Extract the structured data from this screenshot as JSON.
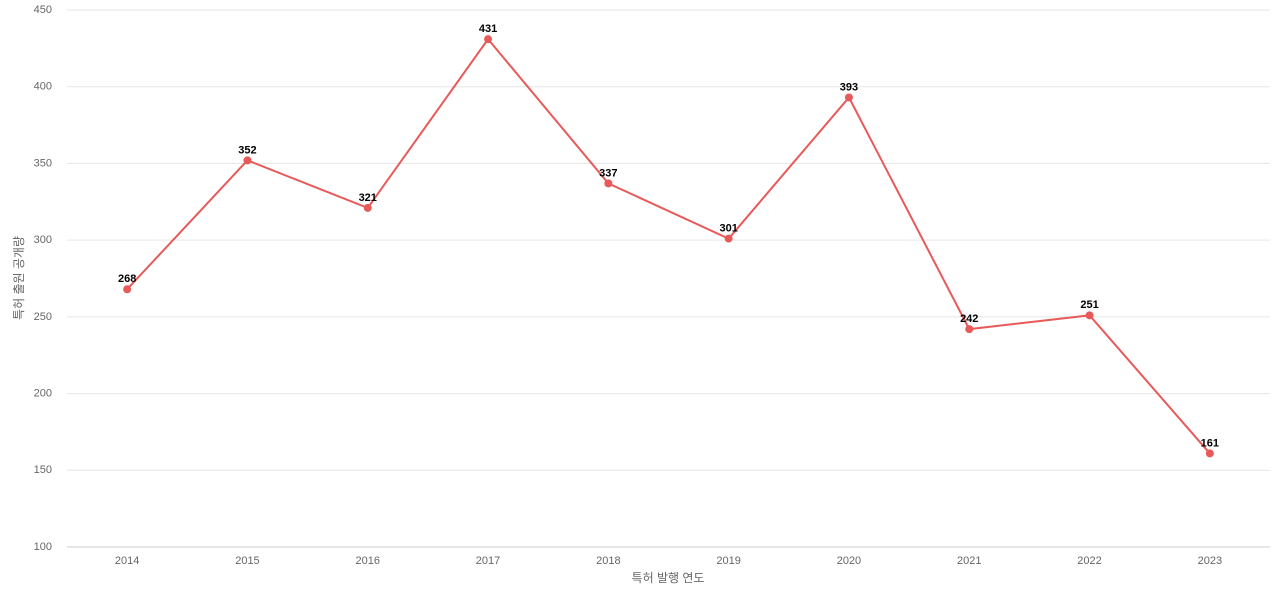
{
  "chart_data": {
    "type": "line",
    "x_label": "특허 발행 연도",
    "y_label": "특허 출원 공개량",
    "categories": [
      "2014",
      "2015",
      "2016",
      "2017",
      "2018",
      "2019",
      "2020",
      "2021",
      "2022",
      "2023"
    ],
    "series": [
      {
        "color": "#e85a5a",
        "values": [
          268,
          352,
          321,
          431,
          337,
          301,
          393,
          242,
          251,
          161
        ]
      }
    ],
    "ylim": [
      100,
      450
    ],
    "yticks": [
      100,
      150,
      200,
      250,
      300,
      350,
      400,
      450
    ],
    "grid": true
  }
}
